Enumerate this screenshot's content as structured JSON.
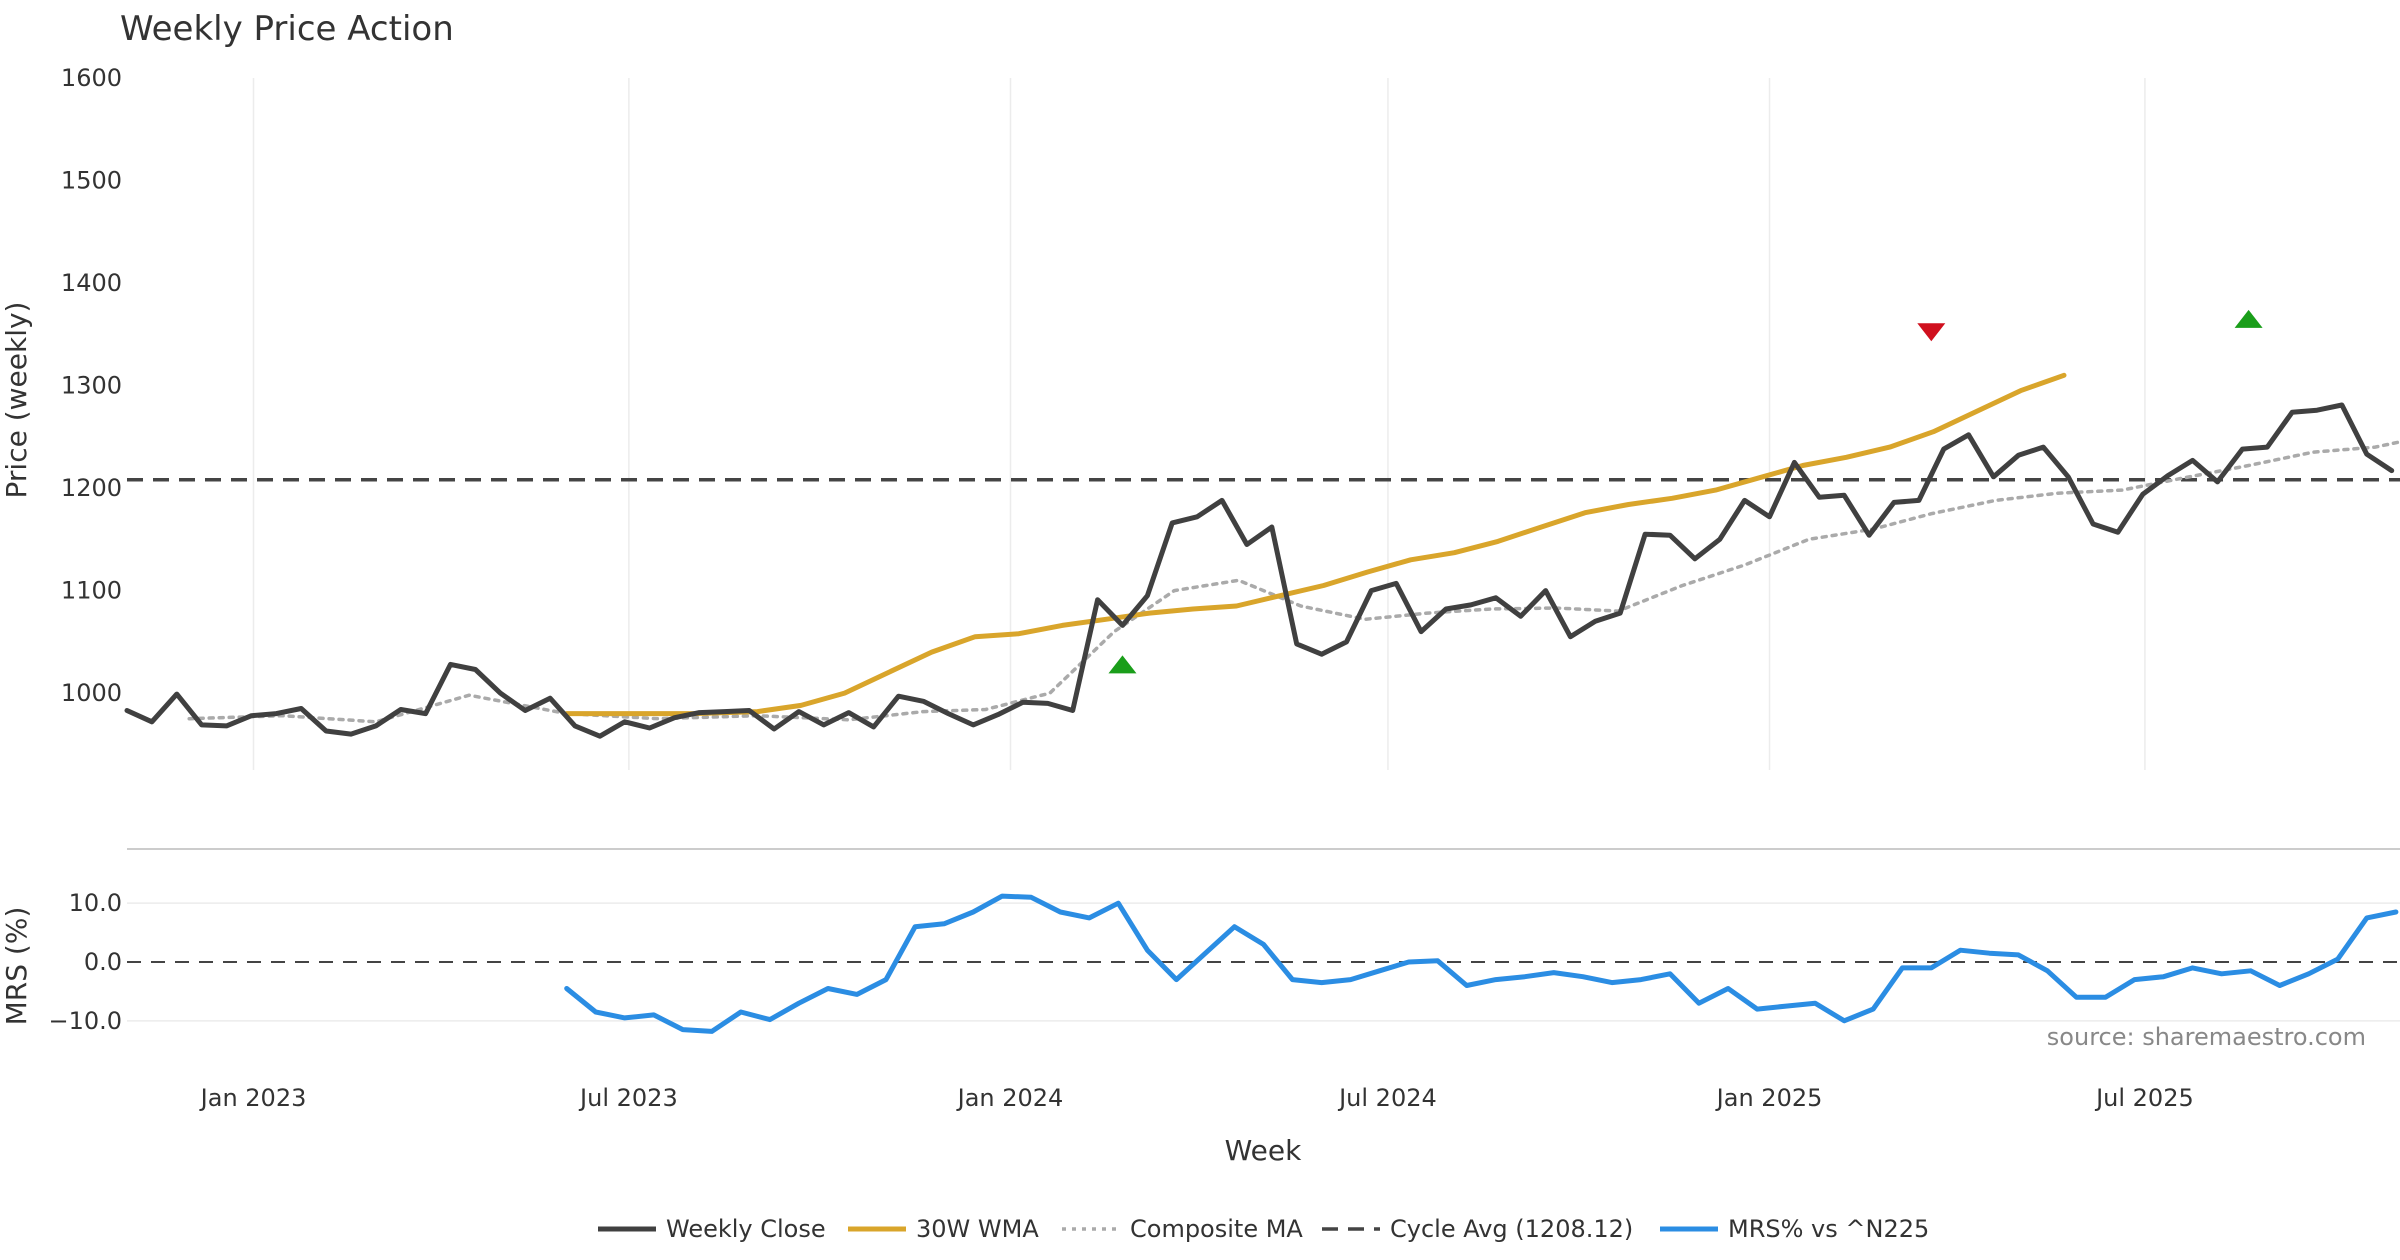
{
  "chart_data": {
    "type": "line",
    "title": "Weekly Price Action",
    "source": "source: sharemaestro.com",
    "xlabel": "Week",
    "date_ticks": [
      {
        "label": "Jan 2023",
        "date": "2023-01-01"
      },
      {
        "label": "Jul 2023",
        "date": "2023-07-01"
      },
      {
        "label": "Jan 2024",
        "date": "2024-01-01"
      },
      {
        "label": "Jul 2024",
        "date": "2024-07-01"
      },
      {
        "label": "Jan 2025",
        "date": "2025-01-01"
      },
      {
        "label": "Jul 2025",
        "date": "2025-07-01"
      }
    ],
    "x_range": [
      "2022-11-01",
      "2025-11-01"
    ],
    "price_panel": {
      "ylabel": "Price (weekly)",
      "ylim": [
        925,
        1600
      ],
      "yticks": [
        1000,
        1100,
        1200,
        1300,
        1400,
        1500,
        1600
      ],
      "cycle_avg": 1208.12,
      "series": [
        {
          "name": "Weekly Close",
          "color": "#404040",
          "style": "solid",
          "points": [
            [
              "2022-11-01",
              983
            ],
            [
              "2022-11-13",
              972
            ],
            [
              "2022-11-25",
              999
            ],
            [
              "2022-12-07",
              969
            ],
            [
              "2022-12-19",
              968
            ],
            [
              "2022-12-31",
              978
            ],
            [
              "2023-01-12",
              980
            ],
            [
              "2023-01-24",
              985
            ],
            [
              "2023-02-05",
              963
            ],
            [
              "2023-02-17",
              960
            ],
            [
              "2023-03-01",
              968
            ],
            [
              "2023-03-13",
              984
            ],
            [
              "2023-03-25",
              980
            ],
            [
              "2023-04-06",
              1028
            ],
            [
              "2023-04-18",
              1023
            ],
            [
              "2023-04-30",
              1000
            ],
            [
              "2023-05-12",
              983
            ],
            [
              "2023-05-24",
              995
            ],
            [
              "2023-06-05",
              968
            ],
            [
              "2023-06-17",
              958
            ],
            [
              "2023-06-29",
              972
            ],
            [
              "2023-07-11",
              966
            ],
            [
              "2023-07-23",
              976
            ],
            [
              "2023-08-04",
              981
            ],
            [
              "2023-08-16",
              982
            ],
            [
              "2023-08-28",
              983
            ],
            [
              "2023-09-09",
              965
            ],
            [
              "2023-09-21",
              982
            ],
            [
              "2023-10-03",
              969
            ],
            [
              "2023-10-15",
              981
            ],
            [
              "2023-10-27",
              967
            ],
            [
              "2023-11-08",
              997
            ],
            [
              "2023-11-20",
              992
            ],
            [
              "2023-12-02",
              980
            ],
            [
              "2023-12-14",
              969
            ],
            [
              "2023-12-26",
              979
            ],
            [
              "2024-01-07",
              991
            ],
            [
              "2024-01-19",
              990
            ],
            [
              "2024-01-31",
              983
            ],
            [
              "2024-02-12",
              1091
            ],
            [
              "2024-02-24",
              1066
            ],
            [
              "2024-03-07",
              1095
            ],
            [
              "2024-03-19",
              1166
            ],
            [
              "2024-03-31",
              1172
            ],
            [
              "2024-04-12",
              1188
            ],
            [
              "2024-04-24",
              1145
            ],
            [
              "2024-05-06",
              1162
            ],
            [
              "2024-05-18",
              1048
            ],
            [
              "2024-05-30",
              1038
            ],
            [
              "2024-06-11",
              1050
            ],
            [
              "2024-06-23",
              1100
            ],
            [
              "2024-07-05",
              1107
            ],
            [
              "2024-07-17",
              1060
            ],
            [
              "2024-07-29",
              1082
            ],
            [
              "2024-08-10",
              1086
            ],
            [
              "2024-08-22",
              1093
            ],
            [
              "2024-09-03",
              1075
            ],
            [
              "2024-09-15",
              1100
            ],
            [
              "2024-09-27",
              1055
            ],
            [
              "2024-10-09",
              1070
            ],
            [
              "2024-10-21",
              1078
            ],
            [
              "2024-11-02",
              1155
            ],
            [
              "2024-11-14",
              1154
            ],
            [
              "2024-11-26",
              1131
            ],
            [
              "2024-12-08",
              1150
            ],
            [
              "2024-12-20",
              1188
            ],
            [
              "2025-01-01",
              1172
            ],
            [
              "2025-01-13",
              1225
            ],
            [
              "2025-01-25",
              1191
            ],
            [
              "2025-02-06",
              1193
            ],
            [
              "2025-02-18",
              1154
            ],
            [
              "2025-03-02",
              1186
            ],
            [
              "2025-03-14",
              1188
            ],
            [
              "2025-03-26",
              1238
            ],
            [
              "2025-04-07",
              1252
            ],
            [
              "2025-04-19",
              1211
            ],
            [
              "2025-05-01",
              1232
            ],
            [
              "2025-05-13",
              1240
            ],
            [
              "2025-05-25",
              1211
            ],
            [
              "2025-06-06",
              1165
            ],
            [
              "2025-06-18",
              1157
            ],
            [
              "2025-06-30",
              1194
            ],
            [
              "2025-07-12",
              1212
            ],
            [
              "2025-07-24",
              1227
            ],
            [
              "2025-08-05",
              1206
            ],
            [
              "2025-08-17",
              1238
            ],
            [
              "2025-08-29",
              1240
            ],
            [
              "2025-09-10",
              1274
            ],
            [
              "2025-09-22",
              1276
            ],
            [
              "2025-10-04",
              1281
            ],
            [
              "2025-10-16",
              1233
            ],
            [
              "2025-10-28",
              1217
            ]
          ]
        },
        {
          "name": "30W WMA",
          "color": "#d9a52b",
          "style": "solid",
          "points": [
            [
              "2023-06-01",
              980
            ],
            [
              "2023-07-01",
              980
            ],
            [
              "2023-08-01",
              980
            ],
            [
              "2023-09-01",
              982
            ],
            [
              "2023-09-22",
              988
            ],
            [
              "2023-10-13",
              1000
            ],
            [
              "2023-11-03",
              1020
            ],
            [
              "2023-11-24",
              1040
            ],
            [
              "2023-12-15",
              1055
            ],
            [
              "2024-01-05",
              1058
            ],
            [
              "2024-01-26",
              1066
            ],
            [
              "2024-02-16",
              1072
            ],
            [
              "2024-03-08",
              1078
            ],
            [
              "2024-03-29",
              1082
            ],
            [
              "2024-04-19",
              1085
            ],
            [
              "2024-05-10",
              1095
            ],
            [
              "2024-05-31",
              1105
            ],
            [
              "2024-06-21",
              1118
            ],
            [
              "2024-07-12",
              1130
            ],
            [
              "2024-08-02",
              1137
            ],
            [
              "2024-08-23",
              1148
            ],
            [
              "2024-09-13",
              1162
            ],
            [
              "2024-10-04",
              1176
            ],
            [
              "2024-10-25",
              1184
            ],
            [
              "2024-11-15",
              1190
            ],
            [
              "2024-12-06",
              1198
            ],
            [
              "2024-12-27",
              1210
            ],
            [
              "2025-01-17",
              1222
            ],
            [
              "2025-02-07",
              1230
            ],
            [
              "2025-02-28",
              1240
            ],
            [
              "2025-03-21",
              1255
            ],
            [
              "2025-04-11",
              1275
            ],
            [
              "2025-05-02",
              1295
            ],
            [
              "2025-05-23",
              1310
            ]
          ]
        },
        {
          "name": "Composite MA",
          "color": "#aaaaaa",
          "style": "dotted",
          "points": [
            [
              "2022-12-01",
              975
            ],
            [
              "2023-01-15",
              978
            ],
            [
              "2023-03-01",
              972
            ],
            [
              "2023-04-15",
              998
            ],
            [
              "2023-06-01",
              980
            ],
            [
              "2023-07-15",
              975
            ],
            [
              "2023-09-01",
              978
            ],
            [
              "2023-10-15",
              974
            ],
            [
              "2023-11-20",
              982
            ],
            [
              "2023-12-20",
              984
            ],
            [
              "2024-01-20",
              1000
            ],
            [
              "2024-02-20",
              1060
            ],
            [
              "2024-03-20",
              1100
            ],
            [
              "2024-04-20",
              1110
            ],
            [
              "2024-05-20",
              1085
            ],
            [
              "2024-06-20",
              1072
            ],
            [
              "2024-07-20",
              1078
            ],
            [
              "2024-08-20",
              1082
            ],
            [
              "2024-09-20",
              1083
            ],
            [
              "2024-10-20",
              1080
            ],
            [
              "2024-11-20",
              1105
            ],
            [
              "2024-12-20",
              1125
            ],
            [
              "2025-01-20",
              1150
            ],
            [
              "2025-02-20",
              1160
            ],
            [
              "2025-03-20",
              1175
            ],
            [
              "2025-04-20",
              1188
            ],
            [
              "2025-05-20",
              1195
            ],
            [
              "2025-06-20",
              1198
            ],
            [
              "2025-07-20",
              1210
            ],
            [
              "2025-08-20",
              1222
            ],
            [
              "2025-09-20",
              1235
            ],
            [
              "2025-10-20",
              1240
            ],
            [
              "2025-11-01",
              1245
            ]
          ]
        }
      ]
    },
    "signals": [
      {
        "type": "buy",
        "date": "2024-02-24",
        "value": 1028,
        "color": "#1a9e1a"
      },
      {
        "type": "sell",
        "date": "2025-03-20",
        "value": 1352,
        "color": "#d0101e"
      },
      {
        "type": "buy",
        "date": "2025-08-20",
        "value": 1365,
        "color": "#1a9e1a"
      }
    ],
    "mrs_panel": {
      "ylabel": "MRS (%)",
      "ylim": [
        -17,
        17
      ],
      "yticks": [
        -10,
        0,
        10
      ],
      "ytick_labels": [
        "−10.0",
        "0.0",
        "10.0"
      ],
      "series": [
        {
          "name": "MRS% vs ^N225",
          "color": "#2b8de3",
          "style": "solid",
          "points": [
            [
              "2023-06-01",
              -4.5
            ],
            [
              "2023-06-15",
              -8.5
            ],
            [
              "2023-06-29",
              -9.5
            ],
            [
              "2023-07-13",
              -9.0
            ],
            [
              "2023-07-27",
              -11.5
            ],
            [
              "2023-08-10",
              -11.8
            ],
            [
              "2023-08-24",
              -8.5
            ],
            [
              "2023-09-07",
              -9.8
            ],
            [
              "2023-09-21",
              -7.0
            ],
            [
              "2023-10-05",
              -4.5
            ],
            [
              "2023-10-19",
              -5.5
            ],
            [
              "2023-11-02",
              -3.0
            ],
            [
              "2023-11-16",
              6.0
            ],
            [
              "2023-11-30",
              6.5
            ],
            [
              "2023-12-14",
              8.5
            ],
            [
              "2023-12-28",
              11.2
            ],
            [
              "2024-01-11",
              11.0
            ],
            [
              "2024-01-25",
              8.5
            ],
            [
              "2024-02-08",
              7.5
            ],
            [
              "2024-02-22",
              10.0
            ],
            [
              "2024-03-07",
              2.0
            ],
            [
              "2024-03-21",
              -3.0
            ],
            [
              "2024-04-04",
              1.5
            ],
            [
              "2024-04-18",
              6.0
            ],
            [
              "2024-05-02",
              3.0
            ],
            [
              "2024-05-16",
              -3.0
            ],
            [
              "2024-05-30",
              -3.5
            ],
            [
              "2024-06-13",
              -3.0
            ],
            [
              "2024-06-27",
              -1.5
            ],
            [
              "2024-07-11",
              0.0
            ],
            [
              "2024-07-25",
              0.2
            ],
            [
              "2024-08-08",
              -4.0
            ],
            [
              "2024-08-22",
              -3.0
            ],
            [
              "2024-09-05",
              -2.5
            ],
            [
              "2024-09-19",
              -1.8
            ],
            [
              "2024-10-03",
              -2.5
            ],
            [
              "2024-10-17",
              -3.5
            ],
            [
              "2024-10-31",
              -3.0
            ],
            [
              "2024-11-14",
              -2.0
            ],
            [
              "2024-11-28",
              -7.0
            ],
            [
              "2024-12-12",
              -4.5
            ],
            [
              "2024-12-26",
              -8.0
            ],
            [
              "2025-01-09",
              -7.5
            ],
            [
              "2025-01-23",
              -7.0
            ],
            [
              "2025-02-06",
              -10.0
            ],
            [
              "2025-02-20",
              -8.0
            ],
            [
              "2025-03-06",
              -1.0
            ],
            [
              "2025-03-20",
              -1.0
            ],
            [
              "2025-04-03",
              2.0
            ],
            [
              "2025-04-17",
              1.5
            ],
            [
              "2025-05-01",
              1.2
            ],
            [
              "2025-05-15",
              -1.5
            ],
            [
              "2025-05-29",
              -6.0
            ],
            [
              "2025-06-12",
              -6.0
            ],
            [
              "2025-06-26",
              -3.0
            ],
            [
              "2025-07-10",
              -2.5
            ],
            [
              "2025-07-24",
              -1.0
            ],
            [
              "2025-08-07",
              -2.0
            ],
            [
              "2025-08-21",
              -1.5
            ],
            [
              "2025-09-04",
              -4.0
            ],
            [
              "2025-09-18",
              -2.0
            ],
            [
              "2025-10-02",
              0.5
            ],
            [
              "2025-10-16",
              7.5
            ],
            [
              "2025-10-30",
              8.5
            ]
          ]
        }
      ]
    },
    "legend": [
      {
        "label": "Weekly Close",
        "color": "#404040",
        "style": "solid"
      },
      {
        "label": "30W WMA",
        "color": "#d9a52b",
        "style": "solid"
      },
      {
        "label": "Composite MA",
        "color": "#aaaaaa",
        "style": "dotted"
      },
      {
        "label": "Cycle Avg (1208.12)",
        "color": "#444444",
        "style": "dashed"
      },
      {
        "label": "MRS% vs ^N225",
        "color": "#2b8de3",
        "style": "solid"
      }
    ]
  }
}
